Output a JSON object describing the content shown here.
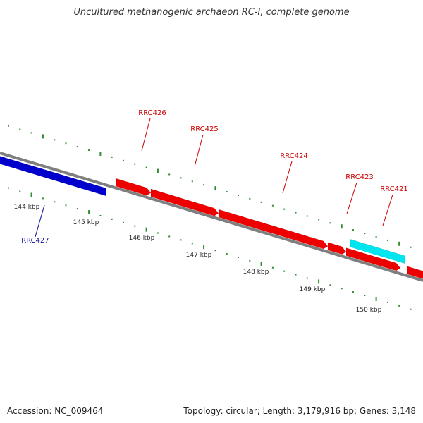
{
  "title": "Uncultured methanogenic archaeon RC-I, complete genome",
  "footer": {
    "accession": "Accession: NC_009464",
    "stats": "Topology: circular; Length: 3,179,916 bp; Genes: 3,148"
  },
  "colors": {
    "backbone": "#7f7f7f",
    "ticks": "#2e8b2e",
    "forward_gene": "#ee0000",
    "reverse_gene": "#0000cc",
    "rna_gene": "#00e5ee",
    "forward_label": "#cc0000",
    "reverse_label": "#000099",
    "scale_text": "#222222"
  },
  "scale": {
    "labels": [
      {
        "kbp": 144,
        "text": "144 kbp"
      },
      {
        "kbp": 145,
        "text": "145 kbp"
      },
      {
        "kbp": 146,
        "text": "146 kbp"
      },
      {
        "kbp": 147,
        "text": "147 kbp"
      },
      {
        "kbp": 148,
        "text": "148 kbp"
      },
      {
        "kbp": 149,
        "text": "149 kbp"
      },
      {
        "kbp": 150,
        "text": "150 kbp"
      }
    ]
  },
  "genes": [
    {
      "name": "RRC427",
      "strand": "reverse",
      "type": "cds"
    },
    {
      "name": "RRC426",
      "strand": "forward",
      "type": "cds"
    },
    {
      "name": "RRC425",
      "strand": "forward",
      "type": "cds"
    },
    {
      "name": "RRC424",
      "strand": "forward",
      "type": "cds"
    },
    {
      "name": "RRC423",
      "strand": "forward",
      "type": "cds"
    },
    {
      "name": "RRC421",
      "strand": "reverse",
      "type": "rna"
    },
    {
      "name": "",
      "strand": "forward",
      "type": "cds"
    },
    {
      "name": "",
      "strand": "forward",
      "type": "cds"
    }
  ]
}
